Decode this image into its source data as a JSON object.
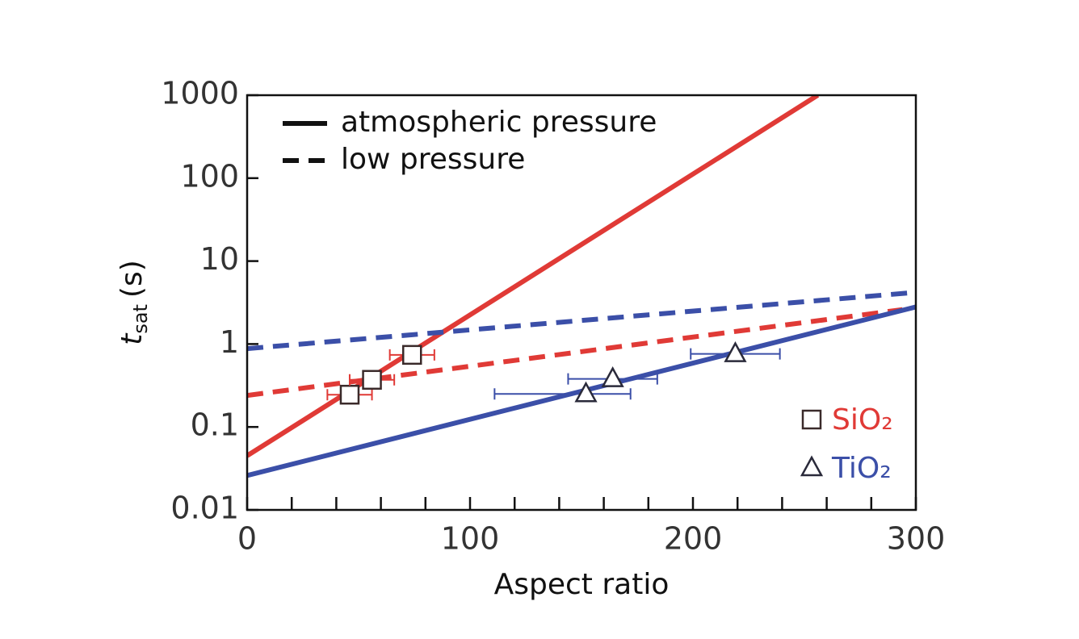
{
  "chart_data": {
    "type": "scatter",
    "x_label": "Aspect ratio",
    "y_label": {
      "symbol": "t",
      "subscript": "sat",
      "unit": "(s)"
    },
    "xlim": [
      0,
      300
    ],
    "xticks": [
      0,
      100,
      200,
      300
    ],
    "xminorticks": [
      20,
      40,
      60,
      80,
      120,
      140,
      160,
      180,
      220,
      240,
      260,
      280
    ],
    "ylim": [
      0.01,
      1000
    ],
    "yticks": [
      0.01,
      0.1,
      1,
      10,
      100,
      1000
    ],
    "ylog": true,
    "style_legend": [
      {
        "label": "atmospheric pressure",
        "dash": "solid"
      },
      {
        "label": "low pressure",
        "dash": "dashed"
      }
    ],
    "series": [
      {
        "name": "SiO₂",
        "color": "#e03a36",
        "marker": "square",
        "x": [
          46,
          56,
          74
        ],
        "values": [
          0.245,
          0.37,
          0.74
        ],
        "xerr_minus": [
          10,
          10,
          10
        ],
        "xerr_plus": [
          10,
          10,
          10
        ]
      },
      {
        "name": "TiO₂",
        "color": "#3b4fa8",
        "marker": "triangle",
        "x": [
          152,
          164,
          219
        ],
        "values": [
          0.25,
          0.38,
          0.76
        ],
        "xerr_minus": [
          41,
          20,
          20
        ],
        "xerr_plus": [
          20,
          20,
          20
        ]
      }
    ],
    "fits": [
      {
        "series": 0,
        "style": 0,
        "x": [
          0,
          256
        ],
        "values": [
          0.045,
          1000
        ]
      },
      {
        "series": 0,
        "style": 1,
        "x": [
          0,
          294
        ],
        "values": [
          0.24,
          2.6
        ]
      },
      {
        "series": 1,
        "style": 0,
        "x": [
          0,
          300
        ],
        "values": [
          0.026,
          2.8
        ]
      },
      {
        "series": 1,
        "style": 1,
        "x": [
          0,
          300
        ],
        "values": [
          0.88,
          4.2
        ]
      }
    ]
  }
}
